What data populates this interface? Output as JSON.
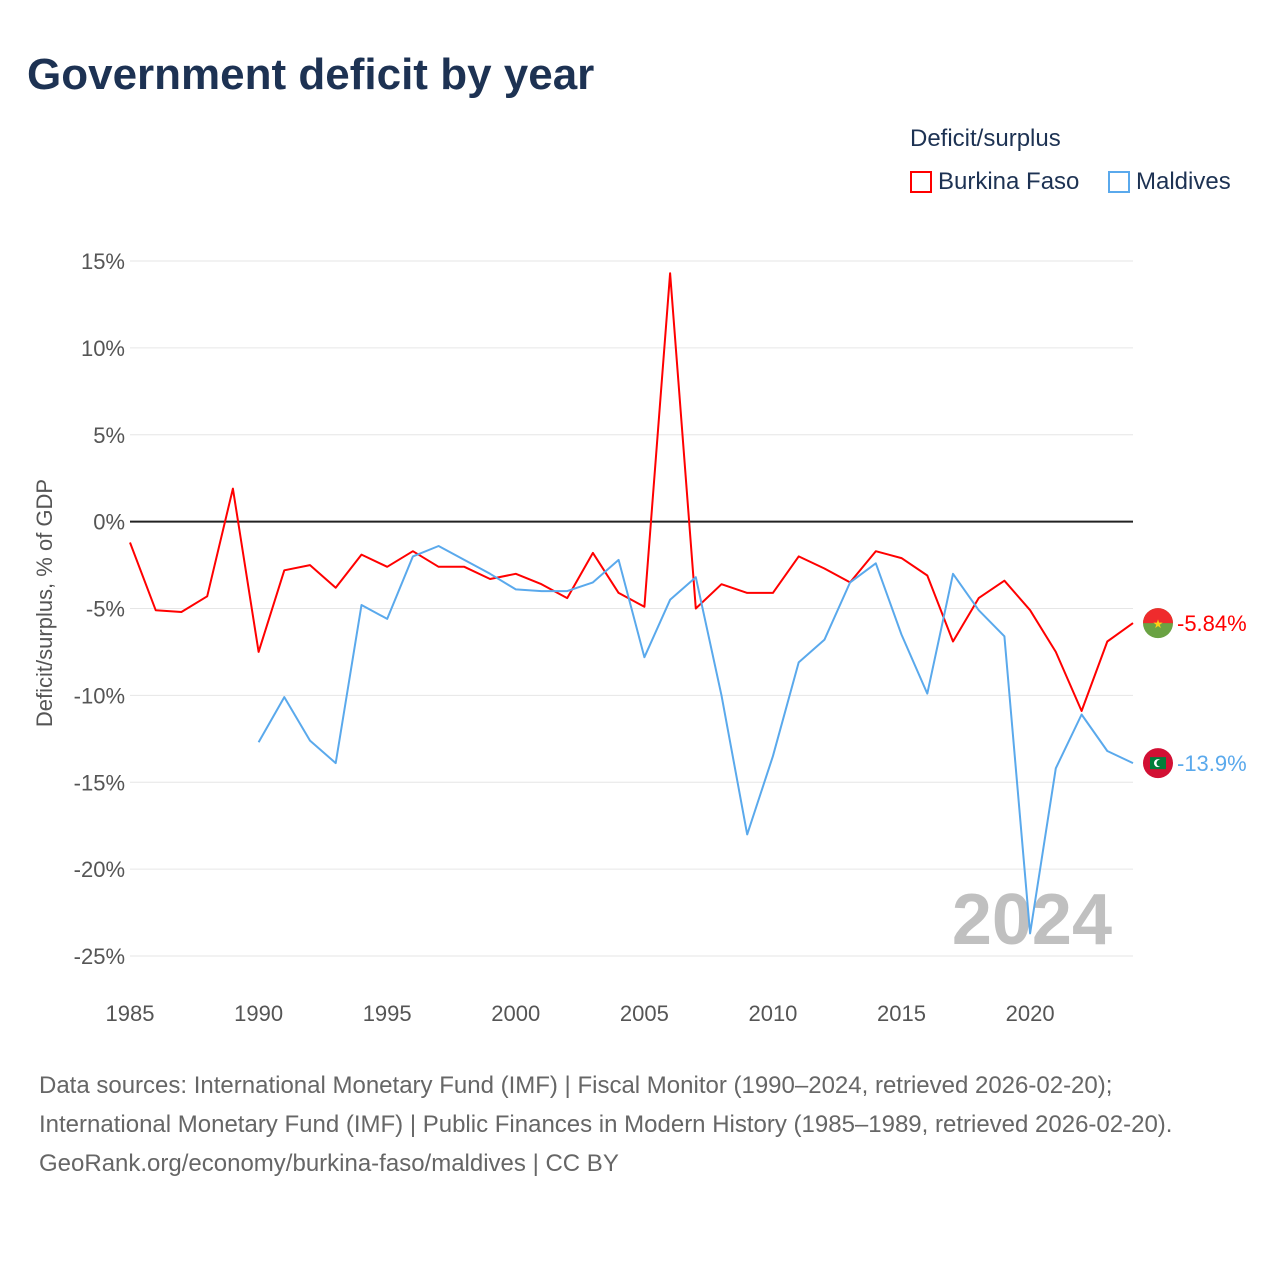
{
  "title": "Government deficit by year",
  "legend": {
    "title": "Deficit/surplus",
    "items": [
      {
        "name": "Burkina Faso",
        "color": "#ff0000"
      },
      {
        "name": "Maldives",
        "color": "#5aa9ec"
      }
    ]
  },
  "chart_data": {
    "type": "line",
    "title": "Government deficit by year",
    "xlabel": "",
    "ylabel": "Deficit/surplus, % of GDP",
    "xlim": [
      1985,
      2024
    ],
    "ylim": [
      -25,
      15
    ],
    "x_ticks": [
      "1985",
      "1990",
      "1995",
      "2000",
      "2005",
      "2010",
      "2015",
      "2020"
    ],
    "y_ticks": [
      {
        "v": 15,
        "label": "15%"
      },
      {
        "v": 10,
        "label": "10%"
      },
      {
        "v": 5,
        "label": "5%"
      },
      {
        "v": 0,
        "label": "0%"
      },
      {
        "v": -5,
        "label": "-5%"
      },
      {
        "v": -10,
        "label": "-10%"
      },
      {
        "v": -15,
        "label": "-15%"
      },
      {
        "v": -20,
        "label": "-20%"
      },
      {
        "v": -25,
        "label": "-25%"
      }
    ],
    "grid": true,
    "legend_position": "top-right",
    "watermark_year": "2024",
    "series": [
      {
        "name": "Burkina Faso",
        "color": "#ff0000",
        "end_label": "-5.84%",
        "start": 1985,
        "values": [
          -1.2,
          -5.1,
          -5.2,
          -4.3,
          1.9,
          -7.5,
          -2.8,
          -2.5,
          -3.8,
          -1.9,
          -2.6,
          -1.7,
          -2.6,
          -2.6,
          -3.3,
          -3.0,
          -3.6,
          -4.4,
          -1.8,
          -4.1,
          -4.9,
          14.3,
          -5.0,
          -3.6,
          -4.1,
          -4.1,
          -2.0,
          -2.7,
          -3.5,
          -1.7,
          -2.1,
          -3.1,
          -6.9,
          -4.4,
          -3.4,
          -5.1,
          -7.5,
          -10.9,
          -6.9,
          -5.84
        ]
      },
      {
        "name": "Maldives",
        "color": "#5aa9ec",
        "end_label": "-13.9%",
        "start": 1990,
        "values": [
          -12.7,
          -10.1,
          -12.6,
          -13.9,
          -4.8,
          -5.6,
          -2.0,
          -1.4,
          -2.2,
          -3.0,
          -3.9,
          -4.0,
          -4.0,
          -3.5,
          -2.2,
          -7.8,
          -4.5,
          -3.2,
          -10.0,
          -18.0,
          -13.5,
          -8.1,
          -6.8,
          -3.5,
          -2.4,
          -6.5,
          -9.9,
          -3.0,
          -5.1,
          -6.6,
          -23.7,
          -14.2,
          -11.1,
          -13.2,
          -13.9
        ]
      }
    ]
  },
  "footer": {
    "sources": "Data sources: International Monetary Fund (IMF) | Fiscal Monitor (1990–2024, retrieved 2026-02-20); International Monetary Fund (IMF) | Public Finances in Modern History (1985–1989, retrieved 2026-02-20).",
    "credit": "GeoRank.org/economy/burkina-faso/maldives | CC BY"
  }
}
